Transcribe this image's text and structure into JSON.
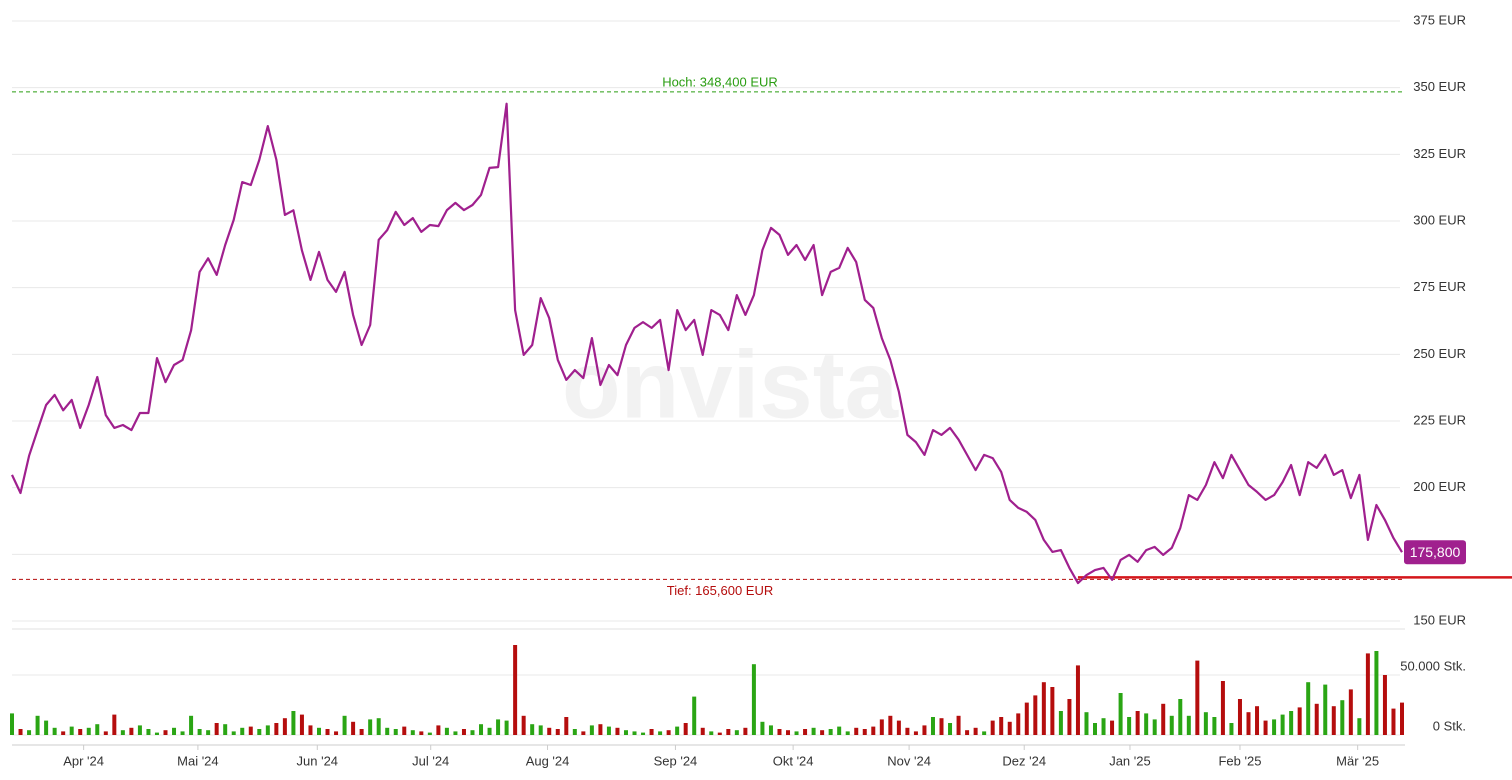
{
  "chart_data": {
    "type": "line",
    "color": "#a0208e",
    "values": [
      204.8,
      198,
      212,
      221.6,
      231,
      234.8,
      229,
      232.9,
      222.4,
      231,
      241.5,
      227.2,
      222.4,
      223.5,
      221.6,
      228,
      228,
      248.6,
      239.6,
      246,
      247.9,
      259,
      280.9,
      286,
      279.8,
      291,
      300.4,
      314.6,
      313.5,
      322.9,
      335.6,
      322.9,
      302.3,
      304,
      289,
      277.9,
      288.4,
      277.9,
      273.4,
      280.9,
      264.8,
      253.5,
      261,
      292.9,
      296.6,
      303.4,
      298.5,
      301.1,
      295.9,
      298.5,
      298.1,
      304.1,
      306.8,
      304.1,
      306,
      309.8,
      319.9,
      320.2,
      344,
      266.6,
      249.8,
      253.5,
      271.1,
      263.6,
      247.9,
      240.4,
      244.1,
      241.1,
      256.1,
      238.5,
      246,
      242.2,
      253.5,
      259.9,
      262.1,
      259.9,
      262.9,
      244.1,
      266.6,
      259.1,
      262.9,
      249.8,
      266.6,
      264.8,
      259.1,
      272.2,
      264.8,
      272.2,
      289.1,
      297.4,
      294.8,
      287.3,
      291,
      285.4,
      291,
      272.2,
      280.9,
      282.4,
      289.9,
      284.6,
      270.4,
      267.4,
      256.1,
      247.9,
      235.9,
      219.8,
      217.1,
      212.3,
      221.6,
      219.8,
      222.4,
      218,
      212.3,
      206.6,
      212.3,
      211.1,
      205.9,
      195.4,
      192.4,
      190.9,
      187.9,
      180.4,
      175.9,
      176.6,
      169.9,
      164.2,
      167.2,
      169.1,
      169.9,
      165.4,
      172.9,
      174.8,
      172.2,
      176.6,
      177.8,
      174.8,
      177.4,
      184.9,
      197.2,
      195.4,
      201,
      209.6,
      203.6,
      212.3,
      206.6,
      201,
      198.4,
      195.4,
      197.2,
      202.1,
      208.5,
      197.2,
      209.6,
      207.4,
      212.3,
      204.8,
      206.6,
      196.1,
      204.8,
      180.4,
      193.5,
      187.9,
      181.1,
      175.8
    ],
    "value_labels": {
      "163": "175,800"
    },
    "xlim": [
      0,
      163
    ],
    "xticks": [
      {
        "value": 8.4,
        "label": "Apr '24"
      },
      {
        "value": 21.8,
        "label": "Mai '24"
      },
      {
        "value": 35.8,
        "label": "Jun '24"
      },
      {
        "value": 49.1,
        "label": "Jul '24"
      },
      {
        "value": 62.8,
        "label": "Aug '24"
      },
      {
        "value": 77.8,
        "label": "Sep '24"
      },
      {
        "value": 91.6,
        "label": "Okt '24"
      },
      {
        "value": 105.2,
        "label": "Nov '24"
      },
      {
        "value": 118.7,
        "label": "Dez '24"
      },
      {
        "value": 131.1,
        "label": "Jan '25"
      },
      {
        "value": 144,
        "label": "Feb '25"
      },
      {
        "value": 157.8,
        "label": "Mär '25"
      }
    ],
    "ylim": [
      150,
      375
    ],
    "yticks": [
      {
        "value": 150,
        "label": "150 EUR"
      },
      {
        "value": 175,
        "label": "175 EUR"
      },
      {
        "value": 200,
        "label": "200 EUR"
      },
      {
        "value": 225,
        "label": "225 EUR"
      },
      {
        "value": 250,
        "label": "250 EUR"
      },
      {
        "value": 275,
        "label": "275 EUR"
      },
      {
        "value": 300,
        "label": "300 EUR"
      },
      {
        "value": 325,
        "label": "325 EUR"
      },
      {
        "value": 350,
        "label": "350 EUR"
      },
      {
        "value": 375,
        "label": "375 EUR"
      }
    ],
    "grid": true,
    "high": {
      "value": 348.4,
      "label": "Hoch: 348,400 EUR",
      "color": "#2a9d12"
    },
    "low": {
      "value": 165.6,
      "label": "Tief: 165,600 EUR",
      "color": "#b50d0d"
    },
    "watermark": "onvista",
    "volume": {
      "up_color": "#2aa514",
      "down_color": "#b50d0d",
      "ylim": [
        0,
        87500
      ],
      "yticks": [
        {
          "value": 0,
          "label": "0 Stk."
        },
        {
          "value": 50000,
          "label": "50.000 Stk."
        }
      ],
      "values": [
        18000,
        5000,
        4000,
        16000,
        12000,
        6000,
        3000,
        7000,
        5000,
        6000,
        9000,
        3000,
        17000,
        4000,
        6000,
        8000,
        5000,
        2000,
        4000,
        6000,
        3000,
        16000,
        5000,
        4000,
        10000,
        9000,
        3000,
        6000,
        7000,
        5000,
        8000,
        10000,
        14000,
        20000,
        17000,
        8000,
        6000,
        5000,
        3000,
        16000,
        11000,
        5000,
        13000,
        14000,
        6000,
        5000,
        7000,
        4000,
        3000,
        2000,
        8000,
        6000,
        3000,
        5000,
        4000,
        9000,
        6000,
        13000,
        12000,
        75000,
        16000,
        9000,
        8000,
        6000,
        5000,
        15000,
        5000,
        3000,
        8000,
        9000,
        7000,
        6000,
        4000,
        3000,
        2000,
        5000,
        3000,
        4000,
        7000,
        10000,
        32000,
        6000,
        3000,
        2000,
        5000,
        4000,
        6000,
        59000,
        11000,
        8000,
        5000,
        4000,
        3000,
        5000,
        6000,
        4000,
        5000,
        7000,
        3000,
        6000,
        5000,
        7000,
        13000,
        16000,
        12000,
        6000,
        3000,
        8000,
        15000,
        14000,
        10000,
        16000,
        4000,
        6000,
        3000,
        12000,
        15000,
        11000,
        18000,
        27000,
        33000,
        44000,
        40000,
        20000,
        30000,
        58000,
        19000,
        10000,
        14000,
        12000,
        35000,
        15000,
        20000,
        18000,
        13000,
        26000,
        16000,
        30000,
        16000,
        62000,
        19000,
        15000,
        45000,
        10000,
        30000,
        19000,
        24000,
        12000,
        13000,
        17000,
        20000,
        23000,
        44000,
        26000,
        42000,
        24000,
        29000,
        38000,
        14000,
        68000,
        70000,
        50000,
        22000,
        27000
      ]
    }
  }
}
